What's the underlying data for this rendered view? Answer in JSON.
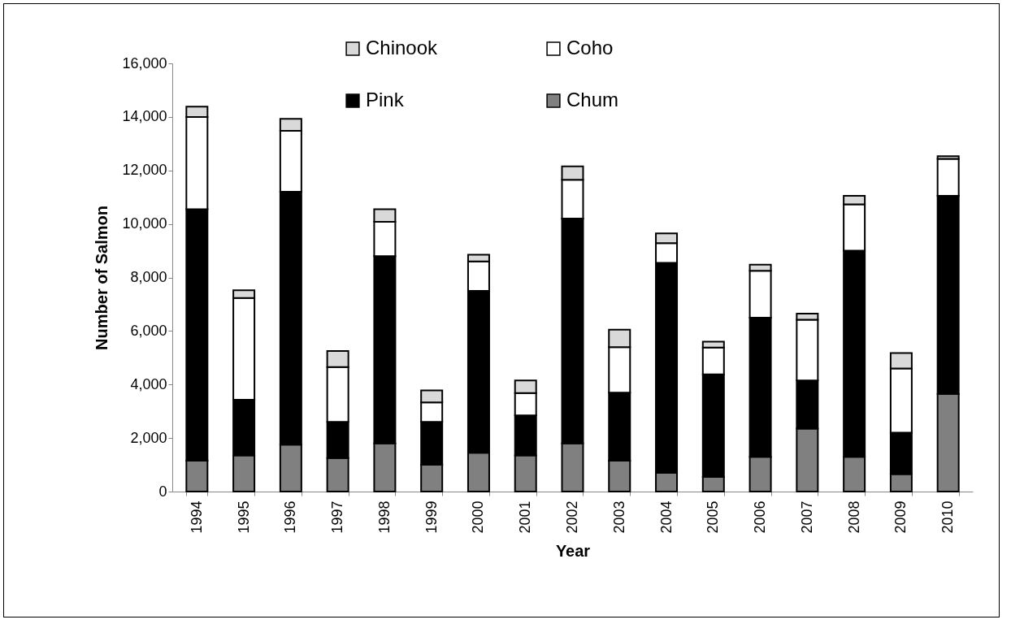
{
  "chart_data": {
    "type": "bar",
    "stacked": true,
    "xlabel": "Year",
    "ylabel": "Number of Salmon",
    "categories": [
      "1994",
      "1995",
      "1996",
      "1997",
      "1998",
      "1999",
      "2000",
      "2001",
      "2002",
      "2003",
      "2004",
      "2005",
      "2006",
      "2007",
      "2008",
      "2009",
      "2010"
    ],
    "series": [
      {
        "name": "Chum",
        "color": "#808080",
        "values": [
          1150,
          1350,
          1750,
          1250,
          1800,
          1000,
          1450,
          1350,
          1800,
          1150,
          700,
          550,
          1300,
          2350,
          1300,
          650,
          3650
        ]
      },
      {
        "name": "Pink",
        "color": "#000000",
        "values": [
          9400,
          2080,
          9450,
          1350,
          7000,
          1600,
          6050,
          1500,
          8400,
          2550,
          7850,
          3830,
          5200,
          1800,
          7700,
          1550,
          7400
        ]
      },
      {
        "name": "Coho",
        "color": "#ffffff",
        "values": [
          3450,
          3800,
          2280,
          2050,
          1280,
          730,
          1100,
          830,
          1450,
          1700,
          730,
          1000,
          1750,
          2270,
          1730,
          2400,
          1380
        ]
      },
      {
        "name": "Chinook",
        "color": "#d9d9d9",
        "values": [
          380,
          290,
          450,
          600,
          470,
          450,
          250,
          470,
          500,
          650,
          370,
          220,
          230,
          230,
          320,
          580,
          100
        ]
      }
    ],
    "ylim": [
      0,
      16000
    ],
    "yticks": [
      0,
      {
        "value": 2000,
        "label": "2,000"
      },
      {
        "value": 4000,
        "label": "4,000"
      },
      {
        "value": 6000,
        "label": "6,000"
      },
      {
        "value": 8000,
        "label": "8,000"
      },
      {
        "value": 10000,
        "label": "10,000"
      },
      {
        "value": 12000,
        "label": "12,000"
      },
      {
        "value": 14000,
        "label": "14,000"
      },
      {
        "value": 16000,
        "label": "16,000"
      }
    ],
    "grid": false,
    "legend": "top"
  }
}
